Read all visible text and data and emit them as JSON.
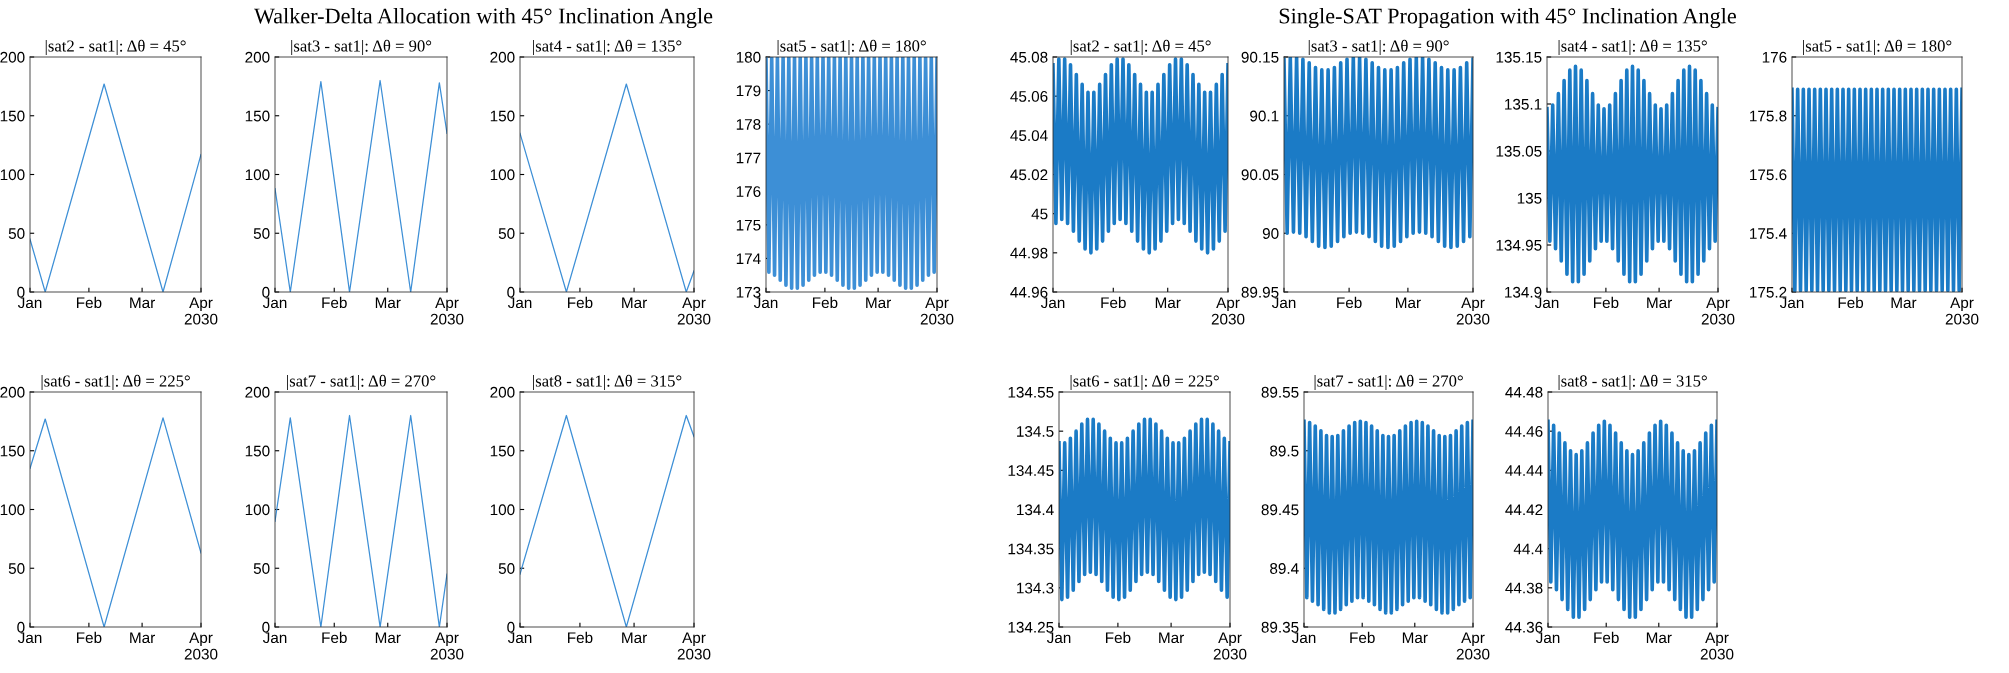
{
  "chart_data": [
    {
      "type": "line",
      "title": "|sat2 - sat1|: Δθ = 45°",
      "annotations": [
        "Walker-Delta Allocation with 45° Inclination Angle"
      ],
      "x": [
        "2030-01-01",
        "2030-01-09",
        "2030-02-09",
        "2030-03-12",
        "2030-04-01"
      ],
      "series": [
        {
          "color": "#3d8fd6",
          "values": [
            45,
            0,
            177,
            0,
            117
          ]
        }
      ],
      "xlim": [
        "2030-01-01",
        "2030-04-01"
      ],
      "xticks": [
        {
          "value": "2030-01-01",
          "label": "Jan"
        },
        {
          "value": "2030-02-01",
          "label": "Feb"
        },
        {
          "value": "2030-03-01",
          "label": "Mar"
        },
        {
          "value": "2030-04-01",
          "label": "Apr\n2030"
        }
      ],
      "ylim": [
        0,
        200
      ],
      "yticks": [
        0,
        50,
        100,
        150,
        200
      ]
    },
    {
      "type": "line",
      "title": "|sat3 - sat1|: Δθ = 90°",
      "x": [
        "2030-01-01",
        "2030-01-09",
        "2030-01-25",
        "2030-02-09",
        "2030-02-25",
        "2030-03-13",
        "2030-03-28",
        "2030-04-01"
      ],
      "series": [
        {
          "color": "#3d8fd6",
          "values": [
            88,
            0,
            179,
            0,
            180,
            0,
            178,
            135
          ]
        }
      ],
      "xlim": [
        "2030-01-01",
        "2030-04-01"
      ],
      "xticks": [
        {
          "value": "2030-01-01",
          "label": "Jan"
        },
        {
          "value": "2030-02-01",
          "label": "Feb"
        },
        {
          "value": "2030-03-01",
          "label": "Mar"
        },
        {
          "value": "2030-04-01",
          "label": "Apr\n2030"
        }
      ],
      "ylim": [
        0,
        200
      ],
      "yticks": [
        0,
        50,
        100,
        150,
        200
      ]
    },
    {
      "type": "line",
      "title": "|sat4 - sat1|: Δθ = 135°",
      "x": [
        "2030-01-01",
        "2030-01-25",
        "2030-02-25",
        "2030-03-28",
        "2030-04-01"
      ],
      "series": [
        {
          "color": "#3d8fd6",
          "values": [
            135,
            0,
            177,
            0,
            18
          ]
        }
      ],
      "xlim": [
        "2030-01-01",
        "2030-04-01"
      ],
      "xticks": [
        {
          "value": "2030-01-01",
          "label": "Jan"
        },
        {
          "value": "2030-02-01",
          "label": "Feb"
        },
        {
          "value": "2030-03-01",
          "label": "Mar"
        },
        {
          "value": "2030-04-01",
          "label": "Apr\n2030"
        }
      ],
      "ylim": [
        0,
        200
      ],
      "yticks": [
        0,
        50,
        100,
        150,
        200
      ]
    },
    {
      "type": "line",
      "title": "|sat5 - sat1|: Δθ = 180°",
      "x": [
        "2030-01-01T00:00",
        "2030-01-02T12:00",
        "2030-01-04T00:00",
        "2030-01-05T12:00",
        "2030-01-07T00:00",
        "2030-01-08T12:00",
        "2030-01-10T00:00",
        "2030-01-11T12:00",
        "2030-01-13T00:00",
        "2030-01-14T12:00",
        "2030-01-16T00:00",
        "2030-01-17T12:00",
        "2030-01-19T00:00",
        "2030-01-20T12:00",
        "2030-01-22T00:00",
        "2030-01-23T12:00",
        "2030-01-25T00:00",
        "2030-01-26T12:00",
        "2030-01-28T00:00",
        "2030-01-29T12:00",
        "2030-01-31T00:00",
        "2030-02-01T12:00",
        "2030-02-03T00:00",
        "2030-02-04T12:00",
        "2030-02-06T00:00",
        "2030-02-07T12:00",
        "2030-02-09T00:00",
        "2030-02-10T12:00",
        "2030-02-12T00:00",
        "2030-02-13T12:00",
        "2030-02-15T00:00",
        "2030-02-16T12:00",
        "2030-02-18T00:00",
        "2030-02-19T12:00",
        "2030-02-21T00:00",
        "2030-02-22T12:00",
        "2030-02-24T00:00",
        "2030-02-25T12:00",
        "2030-02-27T00:00",
        "2030-02-28T12:00",
        "2030-03-02T00:00",
        "2030-03-03T12:00",
        "2030-03-05T00:00",
        "2030-03-06T12:00",
        "2030-03-08T00:00",
        "2030-03-09T12:00",
        "2030-03-11T00:00",
        "2030-03-12T12:00",
        "2030-03-14T00:00",
        "2030-03-15T12:00",
        "2030-03-17T00:00",
        "2030-03-18T12:00",
        "2030-03-20T00:00",
        "2030-03-21T12:00",
        "2030-03-23T00:00",
        "2030-03-24T12:00",
        "2030-03-26T00:00",
        "2030-03-27T12:00",
        "2030-03-29T00:00",
        "2030-03-30T12:00",
        "2030-04-01T00:00"
      ],
      "series": [
        {
          "color": "#3d8fd6",
          "values": [
            180,
            173.59,
            180,
            173.5,
            180,
            173.35,
            180,
            173.2,
            180,
            173.11,
            180,
            173.11,
            180,
            173.2,
            180,
            173.35,
            180,
            173.5,
            180,
            173.59,
            180,
            173.59,
            180,
            173.5,
            180,
            173.35,
            180,
            173.2,
            180,
            173.11,
            180,
            173.11,
            180,
            173.2,
            180,
            173.35,
            180,
            173.5,
            180,
            173.59,
            180,
            173.59,
            180,
            173.5,
            180,
            173.35,
            180,
            173.2,
            180,
            173.11,
            180,
            173.11,
            180,
            173.2,
            180,
            173.35,
            180,
            173.5,
            180,
            173.59,
            180
          ]
        }
      ],
      "xlim": [
        "2030-01-01",
        "2030-04-01"
      ],
      "xticks": [
        {
          "value": "2030-01-01",
          "label": "Jan"
        },
        {
          "value": "2030-02-01",
          "label": "Feb"
        },
        {
          "value": "2030-03-01",
          "label": "Mar"
        },
        {
          "value": "2030-04-01",
          "label": "Apr\n2030"
        }
      ],
      "ylim": [
        173,
        180
      ],
      "yticks": [
        173,
        174,
        175,
        176,
        177,
        178,
        179,
        180
      ]
    },
    {
      "type": "line",
      "title": "|sat6 - sat1|: Δθ = 225°",
      "x": [
        "2030-01-01",
        "2030-01-09",
        "2030-02-09",
        "2030-03-12",
        "2030-04-01"
      ],
      "series": [
        {
          "color": "#3d8fd6",
          "values": [
            135,
            177,
            0,
            178,
            63
          ]
        }
      ],
      "xlim": [
        "2030-01-01",
        "2030-04-01"
      ],
      "xticks": [
        {
          "value": "2030-01-01",
          "label": "Jan"
        },
        {
          "value": "2030-02-01",
          "label": "Feb"
        },
        {
          "value": "2030-03-01",
          "label": "Mar"
        },
        {
          "value": "2030-04-01",
          "label": "Apr\n2030"
        }
      ],
      "ylim": [
        0,
        200
      ],
      "yticks": [
        0,
        50,
        100,
        150,
        200
      ]
    },
    {
      "type": "line",
      "title": "|sat7 - sat1|: Δθ = 270°",
      "x": [
        "2030-01-01",
        "2030-01-09",
        "2030-01-25",
        "2030-02-09",
        "2030-02-25",
        "2030-03-13",
        "2030-03-28",
        "2030-04-01"
      ],
      "series": [
        {
          "color": "#3d8fd6",
          "values": [
            90,
            178,
            0,
            180,
            0,
            180,
            0,
            45
          ]
        }
      ],
      "xlim": [
        "2030-01-01",
        "2030-04-01"
      ],
      "xticks": [
        {
          "value": "2030-01-01",
          "label": "Jan"
        },
        {
          "value": "2030-02-01",
          "label": "Feb"
        },
        {
          "value": "2030-03-01",
          "label": "Mar"
        },
        {
          "value": "2030-04-01",
          "label": "Apr\n2030"
        }
      ],
      "ylim": [
        0,
        200
      ],
      "yticks": [
        0,
        50,
        100,
        150,
        200
      ]
    },
    {
      "type": "line",
      "title": "|sat8 - sat1|: Δθ = 315°",
      "x": [
        "2030-01-01",
        "2030-01-25",
        "2030-02-25",
        "2030-03-28",
        "2030-04-01"
      ],
      "series": [
        {
          "color": "#3d8fd6",
          "values": [
            45,
            180,
            0,
            180,
            162
          ]
        }
      ],
      "xlim": [
        "2030-01-01",
        "2030-04-01"
      ],
      "xticks": [
        {
          "value": "2030-01-01",
          "label": "Jan"
        },
        {
          "value": "2030-02-01",
          "label": "Feb"
        },
        {
          "value": "2030-03-01",
          "label": "Mar"
        },
        {
          "value": "2030-04-01",
          "label": "Apr\n2030"
        }
      ],
      "ylim": [
        0,
        200
      ],
      "yticks": [
        0,
        50,
        100,
        150,
        200
      ]
    },
    {
      "type": "line",
      "title": "|sat2 - sat1|: Δθ = 45°",
      "annotations": [
        "Single-SAT Propagation with 45° Inclination Angle"
      ],
      "x": [
        "2030-01-01T00:00",
        "2030-01-02T12:00",
        "2030-01-04T00:00",
        "2030-01-05T12:00",
        "2030-01-07T00:00",
        "2030-01-08T12:00",
        "2030-01-10T00:00",
        "2030-01-11T12:00",
        "2030-01-13T00:00",
        "2030-01-14T12:00",
        "2030-01-16T00:00",
        "2030-01-17T12:00",
        "2030-01-19T00:00",
        "2030-01-20T12:00",
        "2030-01-22T00:00",
        "2030-01-23T12:00",
        "2030-01-25T00:00",
        "2030-01-26T12:00",
        "2030-01-28T00:00",
        "2030-01-29T12:00",
        "2030-01-31T00:00",
        "2030-02-01T12:00",
        "2030-02-03T00:00",
        "2030-02-04T12:00",
        "2030-02-06T00:00",
        "2030-02-07T12:00",
        "2030-02-09T00:00",
        "2030-02-10T12:00",
        "2030-02-12T00:00",
        "2030-02-13T12:00",
        "2030-02-15T00:00",
        "2030-02-16T12:00",
        "2030-02-18T00:00",
        "2030-02-19T12:00",
        "2030-02-21T00:00",
        "2030-02-22T12:00",
        "2030-02-24T00:00",
        "2030-02-25T12:00",
        "2030-02-27T00:00",
        "2030-02-28T12:00",
        "2030-03-02T00:00",
        "2030-03-03T12:00",
        "2030-03-05T00:00",
        "2030-03-06T12:00",
        "2030-03-08T00:00",
        "2030-03-09T12:00",
        "2030-03-11T00:00",
        "2030-03-12T12:00",
        "2030-03-14T00:00",
        "2030-03-15T12:00",
        "2030-03-17T00:00",
        "2030-03-18T12:00",
        "2030-03-20T00:00",
        "2030-03-21T12:00",
        "2030-03-23T00:00",
        "2030-03-24T12:00",
        "2030-03-26T00:00",
        "2030-03-27T12:00",
        "2030-03-29T00:00",
        "2030-03-30T12:00",
        "2030-04-01T00:00"
      ],
      "series": [
        {
          "color": "#1b7bc6",
          "values": [
            45.076,
            44.995,
            45.079,
            44.997,
            45.079,
            44.995,
            45.076,
            44.991,
            45.071,
            44.986,
            45.066,
            44.982,
            45.062,
            44.98,
            45.062,
            44.982,
            45.066,
            44.986,
            45.071,
            44.991,
            45.076,
            44.995,
            45.079,
            44.997,
            45.079,
            44.995,
            45.076,
            44.991,
            45.071,
            44.986,
            45.066,
            44.982,
            45.062,
            44.98,
            45.062,
            44.982,
            45.066,
            44.986,
            45.071,
            44.991,
            45.076,
            44.995,
            45.079,
            44.997,
            45.079,
            44.995,
            45.076,
            44.991,
            45.071,
            44.986,
            45.066,
            44.982,
            45.062,
            44.98,
            45.062,
            44.982,
            45.066,
            44.986,
            45.071,
            44.991,
            45.076
          ]
        }
      ],
      "xlim": [
        "2030-01-01",
        "2030-04-01"
      ],
      "xticks": [
        {
          "value": "2030-01-01",
          "label": "Jan"
        },
        {
          "value": "2030-02-01",
          "label": "Feb"
        },
        {
          "value": "2030-03-01",
          "label": "Mar"
        },
        {
          "value": "2030-04-01",
          "label": "Apr\n2030"
        }
      ],
      "ylim": [
        44.96,
        45.08
      ],
      "yticks": [
        44.96,
        44.98,
        45,
        45.02,
        45.04,
        45.06,
        45.08
      ]
    },
    {
      "type": "line",
      "title": "|sat3 - sat1|: Δθ = 90°",
      "x": [
        "2030-01-01T00:00",
        "2030-01-02T12:00",
        "2030-01-04T00:00",
        "2030-01-05T12:00",
        "2030-01-07T00:00",
        "2030-01-08T12:00",
        "2030-01-10T00:00",
        "2030-01-11T12:00",
        "2030-01-13T00:00",
        "2030-01-14T12:00",
        "2030-01-16T00:00",
        "2030-01-17T12:00",
        "2030-01-19T00:00",
        "2030-01-20T12:00",
        "2030-01-22T00:00",
        "2030-01-23T12:00",
        "2030-01-25T00:00",
        "2030-01-26T12:00",
        "2030-01-28T00:00",
        "2030-01-29T12:00",
        "2030-01-31T00:00",
        "2030-02-01T12:00",
        "2030-02-03T00:00",
        "2030-02-04T12:00",
        "2030-02-06T00:00",
        "2030-02-07T12:00",
        "2030-02-09T00:00",
        "2030-02-10T12:00",
        "2030-02-12T00:00",
        "2030-02-13T12:00",
        "2030-02-15T00:00",
        "2030-02-16T12:00",
        "2030-02-18T00:00",
        "2030-02-19T12:00",
        "2030-02-21T00:00",
        "2030-02-22T12:00",
        "2030-02-24T00:00",
        "2030-02-25T12:00",
        "2030-02-27T00:00",
        "2030-02-28T12:00",
        "2030-03-02T00:00",
        "2030-03-03T12:00",
        "2030-03-05T00:00",
        "2030-03-06T12:00",
        "2030-03-08T00:00",
        "2030-03-09T12:00",
        "2030-03-11T00:00",
        "2030-03-12T12:00",
        "2030-03-14T00:00",
        "2030-03-15T12:00",
        "2030-03-17T00:00",
        "2030-03-18T12:00",
        "2030-03-20T00:00",
        "2030-03-21T12:00",
        "2030-03-23T00:00",
        "2030-03-24T12:00",
        "2030-03-26T00:00",
        "2030-03-27T12:00",
        "2030-03-29T00:00",
        "2030-03-30T12:00",
        "2030-04-01T00:00"
      ],
      "series": [
        {
          "color": "#1b7bc6",
          "values": [
            90.148,
            90.0,
            90.15,
            90.001,
            90.15,
            90.0,
            90.148,
            89.997,
            90.145,
            89.993,
            90.141,
            89.989,
            90.139,
            89.988,
            90.139,
            89.989,
            90.141,
            89.993,
            90.145,
            89.997,
            90.148,
            90.0,
            90.15,
            90.001,
            90.15,
            90.0,
            90.148,
            89.997,
            90.145,
            89.993,
            90.141,
            89.989,
            90.139,
            89.988,
            90.139,
            89.989,
            90.141,
            89.993,
            90.145,
            89.997,
            90.148,
            90.0,
            90.15,
            90.001,
            90.15,
            90.0,
            90.148,
            89.997,
            90.145,
            89.993,
            90.141,
            89.989,
            90.139,
            89.988,
            90.139,
            89.989,
            90.141,
            89.993,
            90.145,
            89.997,
            90.148
          ]
        }
      ],
      "xlim": [
        "2030-01-01",
        "2030-04-01"
      ],
      "xticks": [
        {
          "value": "2030-01-01",
          "label": "Jan"
        },
        {
          "value": "2030-02-01",
          "label": "Feb"
        },
        {
          "value": "2030-03-01",
          "label": "Mar"
        },
        {
          "value": "2030-04-01",
          "label": "Apr\n2030"
        }
      ],
      "ylim": [
        89.95,
        90.15
      ],
      "yticks": [
        89.95,
        90,
        90.05,
        90.1,
        90.15
      ]
    },
    {
      "type": "line",
      "title": "|sat4 - sat1|: Δθ = 135°",
      "x": [
        "2030-01-01T00:00",
        "2030-01-02T12:00",
        "2030-01-04T00:00",
        "2030-01-05T12:00",
        "2030-01-07T00:00",
        "2030-01-08T12:00",
        "2030-01-10T00:00",
        "2030-01-11T12:00",
        "2030-01-13T00:00",
        "2030-01-14T12:00",
        "2030-01-16T00:00",
        "2030-01-17T12:00",
        "2030-01-19T00:00",
        "2030-01-20T12:00",
        "2030-01-22T00:00",
        "2030-01-23T12:00",
        "2030-01-25T00:00",
        "2030-01-26T12:00",
        "2030-01-28T00:00",
        "2030-01-29T12:00",
        "2030-01-31T00:00",
        "2030-02-01T12:00",
        "2030-02-03T00:00",
        "2030-02-04T12:00",
        "2030-02-06T00:00",
        "2030-02-07T12:00",
        "2030-02-09T00:00",
        "2030-02-10T12:00",
        "2030-02-12T00:00",
        "2030-02-13T12:00",
        "2030-02-15T00:00",
        "2030-02-16T12:00",
        "2030-02-18T00:00",
        "2030-02-19T12:00",
        "2030-02-21T00:00",
        "2030-02-22T12:00",
        "2030-02-24T00:00",
        "2030-02-25T12:00",
        "2030-02-27T00:00",
        "2030-02-28T12:00",
        "2030-03-02T00:00",
        "2030-03-03T12:00",
        "2030-03-05T00:00",
        "2030-03-06T12:00",
        "2030-03-08T00:00",
        "2030-03-09T12:00",
        "2030-03-11T00:00",
        "2030-03-12T12:00",
        "2030-03-14T00:00",
        "2030-03-15T12:00",
        "2030-03-17T00:00",
        "2030-03-18T12:00",
        "2030-03-20T00:00",
        "2030-03-21T12:00",
        "2030-03-23T00:00",
        "2030-03-24T12:00",
        "2030-03-26T00:00",
        "2030-03-27T12:00",
        "2030-03-29T00:00",
        "2030-03-30T12:00",
        "2030-04-01T00:00"
      ],
      "series": [
        {
          "color": "#1b7bc6",
          "values": [
            135.095,
            134.954,
            135.099,
            134.946,
            135.111,
            134.933,
            135.125,
            134.919,
            135.136,
            134.911,
            135.14,
            134.911,
            135.136,
            134.919,
            135.125,
            134.933,
            135.111,
            134.946,
            135.099,
            134.954,
            135.095,
            134.954,
            135.099,
            134.946,
            135.111,
            134.933,
            135.125,
            134.919,
            135.136,
            134.911,
            135.14,
            134.911,
            135.136,
            134.919,
            135.125,
            134.933,
            135.111,
            134.946,
            135.099,
            134.954,
            135.095,
            134.954,
            135.099,
            134.946,
            135.111,
            134.933,
            135.125,
            134.919,
            135.136,
            134.911,
            135.14,
            134.911,
            135.136,
            134.919,
            135.125,
            134.933,
            135.111,
            134.946,
            135.099,
            134.954,
            135.095
          ]
        }
      ],
      "xlim": [
        "2030-01-01",
        "2030-04-01"
      ],
      "xticks": [
        {
          "value": "2030-01-01",
          "label": "Jan"
        },
        {
          "value": "2030-02-01",
          "label": "Feb"
        },
        {
          "value": "2030-03-01",
          "label": "Mar"
        },
        {
          "value": "2030-04-01",
          "label": "Apr\n2030"
        }
      ],
      "ylim": [
        134.9,
        135.15
      ],
      "yticks": [
        134.9,
        134.95,
        135,
        135.05,
        135.1,
        135.15
      ]
    },
    {
      "type": "line",
      "title": "|sat5 - sat1|: Δθ = 180°",
      "x": [
        "2030-01-01T00:00",
        "2030-01-02T12:00",
        "2030-01-04T00:00",
        "2030-01-05T12:00",
        "2030-01-07T00:00",
        "2030-01-08T12:00",
        "2030-01-10T00:00",
        "2030-01-11T12:00",
        "2030-01-13T00:00",
        "2030-01-14T12:00",
        "2030-01-16T00:00",
        "2030-01-17T12:00",
        "2030-01-19T00:00",
        "2030-01-20T12:00",
        "2030-01-22T00:00",
        "2030-01-23T12:00",
        "2030-01-25T00:00",
        "2030-01-26T12:00",
        "2030-01-28T00:00",
        "2030-01-29T12:00",
        "2030-01-31T00:00",
        "2030-02-01T12:00",
        "2030-02-03T00:00",
        "2030-02-04T12:00",
        "2030-02-06T00:00",
        "2030-02-07T12:00",
        "2030-02-09T00:00",
        "2030-02-10T12:00",
        "2030-02-12T00:00",
        "2030-02-13T12:00",
        "2030-02-15T00:00",
        "2030-02-16T12:00",
        "2030-02-18T00:00",
        "2030-02-19T12:00",
        "2030-02-21T00:00",
        "2030-02-22T12:00",
        "2030-02-24T00:00",
        "2030-02-25T12:00",
        "2030-02-27T00:00",
        "2030-02-28T12:00",
        "2030-03-02T00:00",
        "2030-03-03T12:00",
        "2030-03-05T00:00",
        "2030-03-06T12:00",
        "2030-03-08T00:00",
        "2030-03-09T12:00",
        "2030-03-11T00:00",
        "2030-03-12T12:00",
        "2030-03-14T00:00",
        "2030-03-15T12:00",
        "2030-03-17T00:00",
        "2030-03-18T12:00",
        "2030-03-20T00:00",
        "2030-03-21T12:00",
        "2030-03-23T00:00",
        "2030-03-24T12:00",
        "2030-03-26T00:00",
        "2030-03-27T12:00",
        "2030-03-29T00:00",
        "2030-03-30T12:00",
        "2030-04-01T00:00"
      ],
      "series": [
        {
          "color": "#1b7bc6",
          "values": [
            175.89,
            175.205,
            175.89,
            175.205,
            175.89,
            175.205,
            175.89,
            175.205,
            175.89,
            175.205,
            175.89,
            175.205,
            175.89,
            175.205,
            175.89,
            175.205,
            175.89,
            175.205,
            175.89,
            175.205,
            175.89,
            175.205,
            175.89,
            175.205,
            175.89,
            175.205,
            175.89,
            175.205,
            175.89,
            175.205,
            175.89,
            175.205,
            175.89,
            175.205,
            175.89,
            175.205,
            175.89,
            175.205,
            175.89,
            175.205,
            175.89,
            175.205,
            175.89,
            175.205,
            175.89,
            175.205,
            175.89,
            175.205,
            175.89,
            175.205,
            175.89,
            175.205,
            175.89,
            175.205,
            175.89,
            175.205,
            175.89,
            175.205,
            175.89,
            175.205,
            175.89
          ]
        }
      ],
      "xlim": [
        "2030-01-01",
        "2030-04-01"
      ],
      "xticks": [
        {
          "value": "2030-01-01",
          "label": "Jan"
        },
        {
          "value": "2030-02-01",
          "label": "Feb"
        },
        {
          "value": "2030-03-01",
          "label": "Mar"
        },
        {
          "value": "2030-04-01",
          "label": "Apr\n2030"
        }
      ],
      "ylim": [
        175.2,
        176
      ],
      "yticks": [
        175.2,
        175.4,
        175.6,
        175.8,
        176
      ]
    },
    {
      "type": "line",
      "title": "|sat6 - sat1|: Δθ = 225°",
      "x": [
        "2030-01-01T00:00",
        "2030-01-02T12:00",
        "2030-01-04T00:00",
        "2030-01-05T12:00",
        "2030-01-07T00:00",
        "2030-01-08T12:00",
        "2030-01-10T00:00",
        "2030-01-11T12:00",
        "2030-01-13T00:00",
        "2030-01-14T12:00",
        "2030-01-16T00:00",
        "2030-01-17T12:00",
        "2030-01-19T00:00",
        "2030-01-20T12:00",
        "2030-01-22T00:00",
        "2030-01-23T12:00",
        "2030-01-25T00:00",
        "2030-01-26T12:00",
        "2030-01-28T00:00",
        "2030-01-29T12:00",
        "2030-01-31T00:00",
        "2030-02-01T12:00",
        "2030-02-03T00:00",
        "2030-02-04T12:00",
        "2030-02-06T00:00",
        "2030-02-07T12:00",
        "2030-02-09T00:00",
        "2030-02-10T12:00",
        "2030-02-12T00:00",
        "2030-02-13T12:00",
        "2030-02-15T00:00",
        "2030-02-16T12:00",
        "2030-02-18T00:00",
        "2030-02-19T12:00",
        "2030-02-21T00:00",
        "2030-02-22T12:00",
        "2030-02-24T00:00",
        "2030-02-25T12:00",
        "2030-02-27T00:00",
        "2030-02-28T12:00",
        "2030-03-02T00:00",
        "2030-03-03T12:00",
        "2030-03-05T00:00",
        "2030-03-06T12:00",
        "2030-03-08T00:00",
        "2030-03-09T12:00",
        "2030-03-11T00:00",
        "2030-03-12T12:00",
        "2030-03-14T00:00",
        "2030-03-15T12:00",
        "2030-03-17T00:00",
        "2030-03-18T12:00",
        "2030-03-20T00:00",
        "2030-03-21T12:00",
        "2030-03-23T00:00",
        "2030-03-24T12:00",
        "2030-03-26T00:00",
        "2030-03-27T12:00",
        "2030-03-29T00:00",
        "2030-03-30T12:00",
        "2030-04-01T00:00"
      ],
      "series": [
        {
          "color": "#1b7bc6",
          "values": [
            134.485,
            134.285,
            134.485,
            134.288,
            134.491,
            134.297,
            134.5,
            134.308,
            134.509,
            134.317,
            134.515,
            134.32,
            134.515,
            134.317,
            134.509,
            134.308,
            134.5,
            134.297,
            134.491,
            134.288,
            134.485,
            134.285,
            134.485,
            134.288,
            134.491,
            134.297,
            134.5,
            134.308,
            134.509,
            134.317,
            134.515,
            134.32,
            134.515,
            134.317,
            134.509,
            134.308,
            134.5,
            134.297,
            134.491,
            134.288,
            134.485,
            134.285,
            134.485,
            134.288,
            134.491,
            134.297,
            134.5,
            134.308,
            134.509,
            134.317,
            134.515,
            134.32,
            134.515,
            134.317,
            134.509,
            134.308,
            134.5,
            134.297,
            134.491,
            134.288,
            134.485
          ]
        }
      ],
      "xlim": [
        "2030-01-01",
        "2030-04-01"
      ],
      "xticks": [
        {
          "value": "2030-01-01",
          "label": "Jan"
        },
        {
          "value": "2030-02-01",
          "label": "Feb"
        },
        {
          "value": "2030-03-01",
          "label": "Mar"
        },
        {
          "value": "2030-04-01",
          "label": "Apr\n2030"
        }
      ],
      "ylim": [
        134.25,
        134.55
      ],
      "yticks": [
        134.25,
        134.3,
        134.35,
        134.4,
        134.45,
        134.5,
        134.55
      ]
    },
    {
      "type": "line",
      "title": "|sat7 - sat1|: Δθ = 270°",
      "x": [
        "2030-01-01T00:00",
        "2030-01-02T12:00",
        "2030-01-04T00:00",
        "2030-01-05T12:00",
        "2030-01-07T00:00",
        "2030-01-08T12:00",
        "2030-01-10T00:00",
        "2030-01-11T12:00",
        "2030-01-13T00:00",
        "2030-01-14T12:00",
        "2030-01-16T00:00",
        "2030-01-17T12:00",
        "2030-01-19T00:00",
        "2030-01-20T12:00",
        "2030-01-22T00:00",
        "2030-01-23T12:00",
        "2030-01-25T00:00",
        "2030-01-26T12:00",
        "2030-01-28T00:00",
        "2030-01-29T12:00",
        "2030-01-31T00:00",
        "2030-02-01T12:00",
        "2030-02-03T00:00",
        "2030-02-04T12:00",
        "2030-02-06T00:00",
        "2030-02-07T12:00",
        "2030-02-09T00:00",
        "2030-02-10T12:00",
        "2030-02-12T00:00",
        "2030-02-13T12:00",
        "2030-02-15T00:00",
        "2030-02-16T12:00",
        "2030-02-18T00:00",
        "2030-02-19T12:00",
        "2030-02-21T00:00",
        "2030-02-22T12:00",
        "2030-02-24T00:00",
        "2030-02-25T12:00",
        "2030-02-27T00:00",
        "2030-02-28T12:00",
        "2030-03-02T00:00",
        "2030-03-03T12:00",
        "2030-03-05T00:00",
        "2030-03-06T12:00",
        "2030-03-08T00:00",
        "2030-03-09T12:00",
        "2030-03-11T00:00",
        "2030-03-12T12:00",
        "2030-03-14T00:00",
        "2030-03-15T12:00",
        "2030-03-17T00:00",
        "2030-03-18T12:00",
        "2030-03-20T00:00",
        "2030-03-21T12:00",
        "2030-03-23T00:00",
        "2030-03-24T12:00",
        "2030-03-26T00:00",
        "2030-03-27T12:00",
        "2030-03-29T00:00",
        "2030-03-30T12:00",
        "2030-04-01T00:00"
      ],
      "series": [
        {
          "color": "#1b7bc6",
          "values": [
            89.525,
            89.375,
            89.524,
            89.372,
            89.521,
            89.369,
            89.517,
            89.365,
            89.513,
            89.362,
            89.512,
            89.362,
            89.513,
            89.365,
            89.517,
            89.369,
            89.521,
            89.372,
            89.524,
            89.375,
            89.525,
            89.375,
            89.524,
            89.372,
            89.521,
            89.369,
            89.517,
            89.365,
            89.513,
            89.362,
            89.512,
            89.362,
            89.513,
            89.365,
            89.517,
            89.369,
            89.521,
            89.372,
            89.524,
            89.375,
            89.525,
            89.375,
            89.524,
            89.372,
            89.521,
            89.369,
            89.517,
            89.365,
            89.513,
            89.362,
            89.512,
            89.362,
            89.513,
            89.365,
            89.517,
            89.369,
            89.521,
            89.372,
            89.524,
            89.375,
            89.525
          ]
        }
      ],
      "xlim": [
        "2030-01-01",
        "2030-04-01"
      ],
      "xticks": [
        {
          "value": "2030-01-01",
          "label": "Jan"
        },
        {
          "value": "2030-02-01",
          "label": "Feb"
        },
        {
          "value": "2030-03-01",
          "label": "Mar"
        },
        {
          "value": "2030-04-01",
          "label": "Apr\n2030"
        }
      ],
      "ylim": [
        89.35,
        89.55
      ],
      "yticks": [
        89.35,
        89.4,
        89.45,
        89.5,
        89.55
      ]
    },
    {
      "type": "line",
      "title": "|sat8 - sat1|: Δθ = 315°",
      "x": [
        "2030-01-01T00:00",
        "2030-01-02T12:00",
        "2030-01-04T00:00",
        "2030-01-05T12:00",
        "2030-01-07T00:00",
        "2030-01-08T12:00",
        "2030-01-10T00:00",
        "2030-01-11T12:00",
        "2030-01-13T00:00",
        "2030-01-14T12:00",
        "2030-01-16T00:00",
        "2030-01-17T12:00",
        "2030-01-19T00:00",
        "2030-01-20T12:00",
        "2030-01-22T00:00",
        "2030-01-23T12:00",
        "2030-01-25T00:00",
        "2030-01-26T12:00",
        "2030-01-28T00:00",
        "2030-01-29T12:00",
        "2030-01-31T00:00",
        "2030-02-01T12:00",
        "2030-02-03T00:00",
        "2030-02-04T12:00",
        "2030-02-06T00:00",
        "2030-02-07T12:00",
        "2030-02-09T00:00",
        "2030-02-10T12:00",
        "2030-02-12T00:00",
        "2030-02-13T12:00",
        "2030-02-15T00:00",
        "2030-02-16T12:00",
        "2030-02-18T00:00",
        "2030-02-19T12:00",
        "2030-02-21T00:00",
        "2030-02-22T12:00",
        "2030-02-24T00:00",
        "2030-02-25T12:00",
        "2030-02-27T00:00",
        "2030-02-28T12:00",
        "2030-03-02T00:00",
        "2030-03-03T12:00",
        "2030-03-05T00:00",
        "2030-03-06T12:00",
        "2030-03-08T00:00",
        "2030-03-09T12:00",
        "2030-03-11T00:00",
        "2030-03-12T12:00",
        "2030-03-14T00:00",
        "2030-03-15T12:00",
        "2030-03-17T00:00",
        "2030-03-18T12:00",
        "2030-03-20T00:00",
        "2030-03-21T12:00",
        "2030-03-23T00:00",
        "2030-03-24T12:00",
        "2030-03-26T00:00",
        "2030-03-27T12:00",
        "2030-03-29T00:00",
        "2030-03-30T12:00",
        "2030-04-01T00:00"
      ],
      "series": [
        {
          "color": "#1b7bc6",
          "values": [
            44.465,
            44.383,
            44.463,
            44.379,
            44.459,
            44.374,
            44.454,
            44.369,
            44.45,
            44.365,
            44.448,
            44.365,
            44.45,
            44.369,
            44.454,
            44.374,
            44.459,
            44.379,
            44.463,
            44.383,
            44.465,
            44.383,
            44.463,
            44.379,
            44.459,
            44.374,
            44.454,
            44.369,
            44.45,
            44.365,
            44.448,
            44.365,
            44.45,
            44.369,
            44.454,
            44.374,
            44.459,
            44.379,
            44.463,
            44.383,
            44.465,
            44.383,
            44.463,
            44.379,
            44.459,
            44.374,
            44.454,
            44.369,
            44.45,
            44.365,
            44.448,
            44.365,
            44.45,
            44.369,
            44.454,
            44.374,
            44.459,
            44.379,
            44.463,
            44.383,
            44.465
          ]
        }
      ],
      "xlim": [
        "2030-01-01",
        "2030-04-01"
      ],
      "xticks": [
        {
          "value": "2030-01-01",
          "label": "Jan"
        },
        {
          "value": "2030-02-01",
          "label": "Feb"
        },
        {
          "value": "2030-03-01",
          "label": "Mar"
        },
        {
          "value": "2030-04-01",
          "label": "Apr\n2030"
        }
      ],
      "ylim": [
        44.36,
        44.48
      ],
      "yticks": [
        44.36,
        44.38,
        44.4,
        44.42,
        44.44,
        44.46,
        44.48
      ]
    }
  ]
}
